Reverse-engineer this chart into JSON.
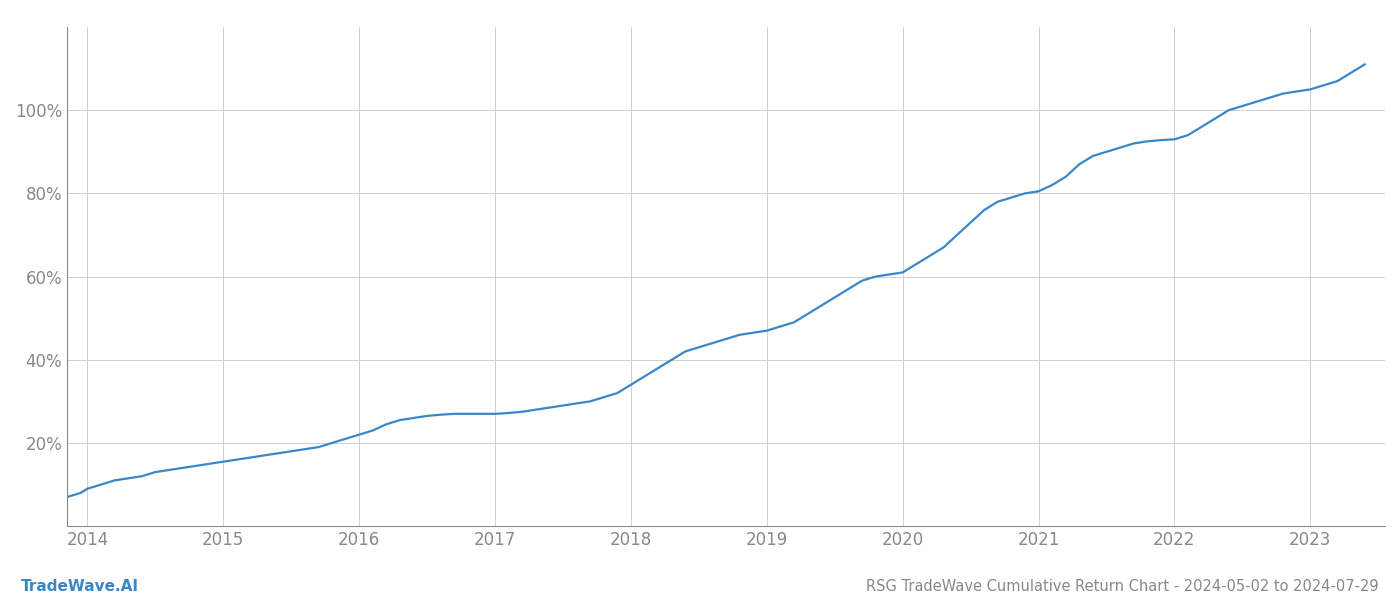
{
  "title": "RSG TradeWave Cumulative Return Chart - 2024-05-02 to 2024-07-29",
  "watermark": "TradeWave.AI",
  "line_color": "#3a87c8",
  "background_color": "#ffffff",
  "grid_color": "#d0d0d0",
  "x_years": [
    2014,
    2015,
    2016,
    2017,
    2018,
    2019,
    2020,
    2021,
    2022,
    2023
  ],
  "x_data": [
    2013.85,
    2013.95,
    2014.0,
    2014.1,
    2014.2,
    2014.3,
    2014.4,
    2014.5,
    2014.6,
    2014.7,
    2014.8,
    2014.9,
    2015.0,
    2015.1,
    2015.2,
    2015.3,
    2015.4,
    2015.5,
    2015.6,
    2015.7,
    2015.8,
    2015.9,
    2016.0,
    2016.1,
    2016.2,
    2016.3,
    2016.4,
    2016.5,
    2016.6,
    2016.7,
    2016.8,
    2016.9,
    2017.0,
    2017.1,
    2017.2,
    2017.3,
    2017.4,
    2017.5,
    2017.6,
    2017.7,
    2017.8,
    2017.9,
    2018.0,
    2018.1,
    2018.2,
    2018.3,
    2018.4,
    2018.5,
    2018.6,
    2018.7,
    2018.8,
    2018.9,
    2019.0,
    2019.1,
    2019.2,
    2019.3,
    2019.4,
    2019.5,
    2019.6,
    2019.7,
    2019.8,
    2019.9,
    2020.0,
    2020.1,
    2020.2,
    2020.3,
    2020.4,
    2020.5,
    2020.6,
    2020.7,
    2020.8,
    2020.9,
    2021.0,
    2021.1,
    2021.2,
    2021.3,
    2021.4,
    2021.5,
    2021.6,
    2021.7,
    2021.8,
    2021.9,
    2022.0,
    2022.1,
    2022.2,
    2022.3,
    2022.4,
    2022.5,
    2022.6,
    2022.7,
    2022.8,
    2022.9,
    2023.0,
    2023.1,
    2023.2,
    2023.3,
    2023.4
  ],
  "y_data": [
    7,
    8,
    9,
    10,
    11,
    11.5,
    12,
    13,
    13.5,
    14,
    14.5,
    15,
    15.5,
    16,
    16.5,
    17,
    17.5,
    18,
    18.5,
    19,
    20,
    21,
    22,
    23,
    24.5,
    25.5,
    26,
    26.5,
    26.8,
    27,
    27,
    27,
    27,
    27.2,
    27.5,
    28,
    28.5,
    29,
    29.5,
    30,
    31,
    32,
    34,
    36,
    38,
    40,
    42,
    43,
    44,
    45,
    46,
    46.5,
    47,
    48,
    49,
    51,
    53,
    55,
    57,
    59,
    60,
    60.5,
    61,
    63,
    65,
    67,
    70,
    73,
    76,
    78,
    79,
    80,
    80.5,
    82,
    84,
    87,
    89,
    90,
    91,
    92,
    92.5,
    92.8,
    93,
    94,
    96,
    98,
    100,
    101,
    102,
    103,
    104,
    104.5,
    105,
    106,
    107,
    109,
    111
  ],
  "ylim": [
    0,
    120
  ],
  "xlim": [
    2013.85,
    2023.55
  ],
  "yticks": [
    20,
    40,
    60,
    80,
    100
  ],
  "title_fontsize": 10.5,
  "watermark_fontsize": 11,
  "tick_fontsize": 12,
  "line_width": 1.6
}
